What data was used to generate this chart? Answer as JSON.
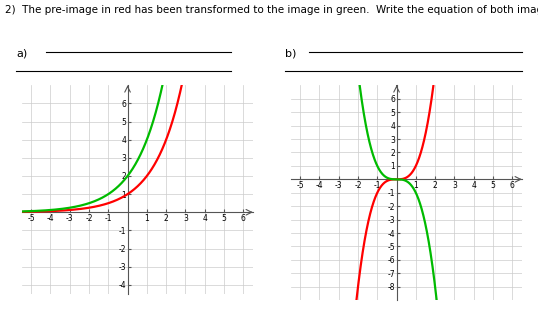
{
  "title_text": "2)  The pre-image in red has been transformed to the image in green.  Write the equation of both images.",
  "label_a": "a)",
  "label_b": "b)",
  "graph_a": {
    "xlim": [
      -5.5,
      6.5
    ],
    "ylim": [
      -4.5,
      7
    ],
    "xticks": [
      -5,
      -4,
      -3,
      -2,
      -1,
      1,
      2,
      3,
      4,
      5,
      6
    ],
    "yticks": [
      -4,
      -3,
      -2,
      -1,
      1,
      2,
      3,
      4,
      5,
      6
    ],
    "red_color": "#ff0000",
    "green_color": "#00bb00",
    "red_note": "y = 2^x",
    "green_note": "y = 2^(x+1)"
  },
  "graph_b": {
    "xlim": [
      -5.5,
      6.5
    ],
    "ylim": [
      -9,
      7
    ],
    "xticks": [
      -5,
      -4,
      -3,
      -2,
      -1,
      1,
      2,
      3,
      4,
      5,
      6
    ],
    "yticks": [
      -8,
      -7,
      -6,
      -5,
      -4,
      -3,
      -2,
      -1,
      1,
      2,
      3,
      4,
      5,
      6
    ],
    "red_color": "#ff0000",
    "green_color": "#00bb00",
    "red_note": "y = x^3",
    "green_note": "y = -x^3"
  },
  "bg_color": "#ffffff",
  "grid_color": "#cccccc",
  "axis_color": "#555555",
  "tick_fontsize": 5.5,
  "title_fontsize": 7.5,
  "label_fontsize": 8
}
